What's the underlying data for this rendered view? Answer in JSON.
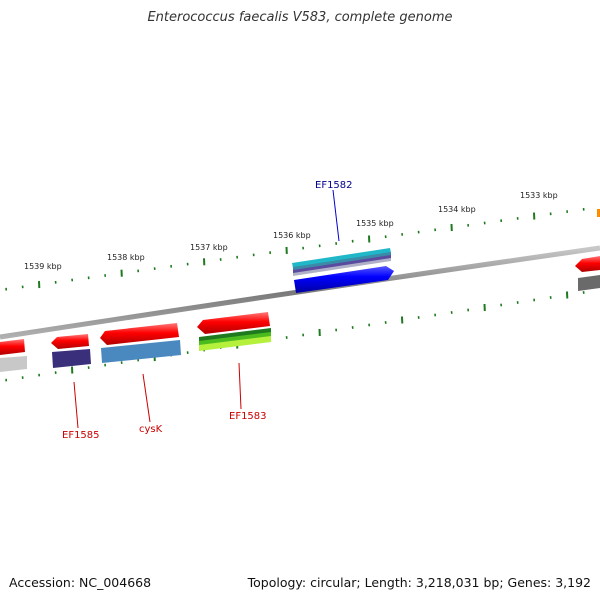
{
  "title": "Enterococcus faecalis V583, complete genome",
  "footer": {
    "accession": "Accession: NC_004668",
    "summary": "Topology: circular; Length: 3,218,031 bp; Genes: 3,192"
  },
  "colors": {
    "backbone": "#8a8a8a",
    "tick": "#1e7a1e",
    "forward_feature": "#ff0000",
    "forward_gene_label": "#00008b",
    "reverse_gene_label": "#cc0000"
  },
  "scale_labels": [
    "1533 kbp",
    "1534 kbp",
    "1535 kbp",
    "1536 kbp",
    "1537 kbp",
    "1538 kbp",
    "1539 kbp"
  ],
  "gene_labels": {
    "ef1582": "EF1582",
    "ef1583": "EF1583",
    "cysk": "cysK",
    "ef1585": "EF1585"
  }
}
